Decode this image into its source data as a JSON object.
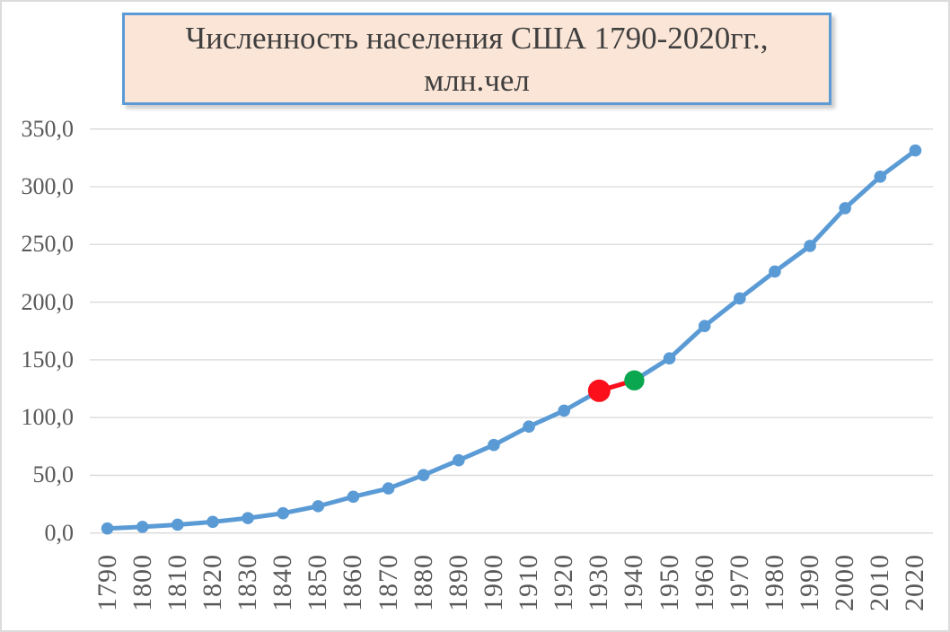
{
  "page": {
    "background_color": "#ffffff",
    "frame_border_color": "#dcdcdc"
  },
  "title": {
    "full_text": "Численность населения США 1790-2020гг., млн.чел",
    "lines": [
      "Численность населения США 1790-2020гг.,",
      "млн.чел"
    ],
    "background_color": "#fbe5d6",
    "border_color": "#5b9bd5",
    "text_color": "#3f3f3f"
  },
  "chart_data": {
    "type": "line",
    "title": "Численность населения США 1790-2020гг., млн.чел",
    "x": [
      1790,
      1800,
      1810,
      1820,
      1830,
      1840,
      1850,
      1860,
      1870,
      1880,
      1890,
      1900,
      1910,
      1920,
      1930,
      1940,
      1950,
      1960,
      1970,
      1980,
      1990,
      2000,
      2010,
      2020
    ],
    "series": [
      {
        "name": "Численность населения США, млн.чел",
        "color": "#5b9bd5",
        "values": [
          3.9,
          5.3,
          7.2,
          9.6,
          12.9,
          17.1,
          23.2,
          31.4,
          38.6,
          50.2,
          63.0,
          76.2,
          92.2,
          106.0,
          123.2,
          132.2,
          151.3,
          179.3,
          203.2,
          226.5,
          248.7,
          281.4,
          308.7,
          331.4
        ]
      }
    ],
    "highlights": [
      {
        "year": 1930,
        "value": 123.2,
        "color": "#fa0f1b",
        "marker_size": "large"
      },
      {
        "year": 1940,
        "value": 132.2,
        "color": "#0aa650",
        "marker_size": "large"
      }
    ],
    "highlight_segment": {
      "from": 1930,
      "to": 1940,
      "color": "#fa0f1b"
    },
    "xlabel": "",
    "ylabel": "",
    "ylim": [
      0,
      350
    ],
    "y_ticks": [
      "0,0",
      "50,0",
      "100,0",
      "150,0",
      "200,0",
      "250,0",
      "300,0",
      "350,0"
    ],
    "y_tick_values": [
      0,
      50,
      100,
      150,
      200,
      250,
      300,
      350
    ],
    "grid": true,
    "gridline_color": "#d9d9d9",
    "axis_label_color": "#595959",
    "legend": "none"
  }
}
